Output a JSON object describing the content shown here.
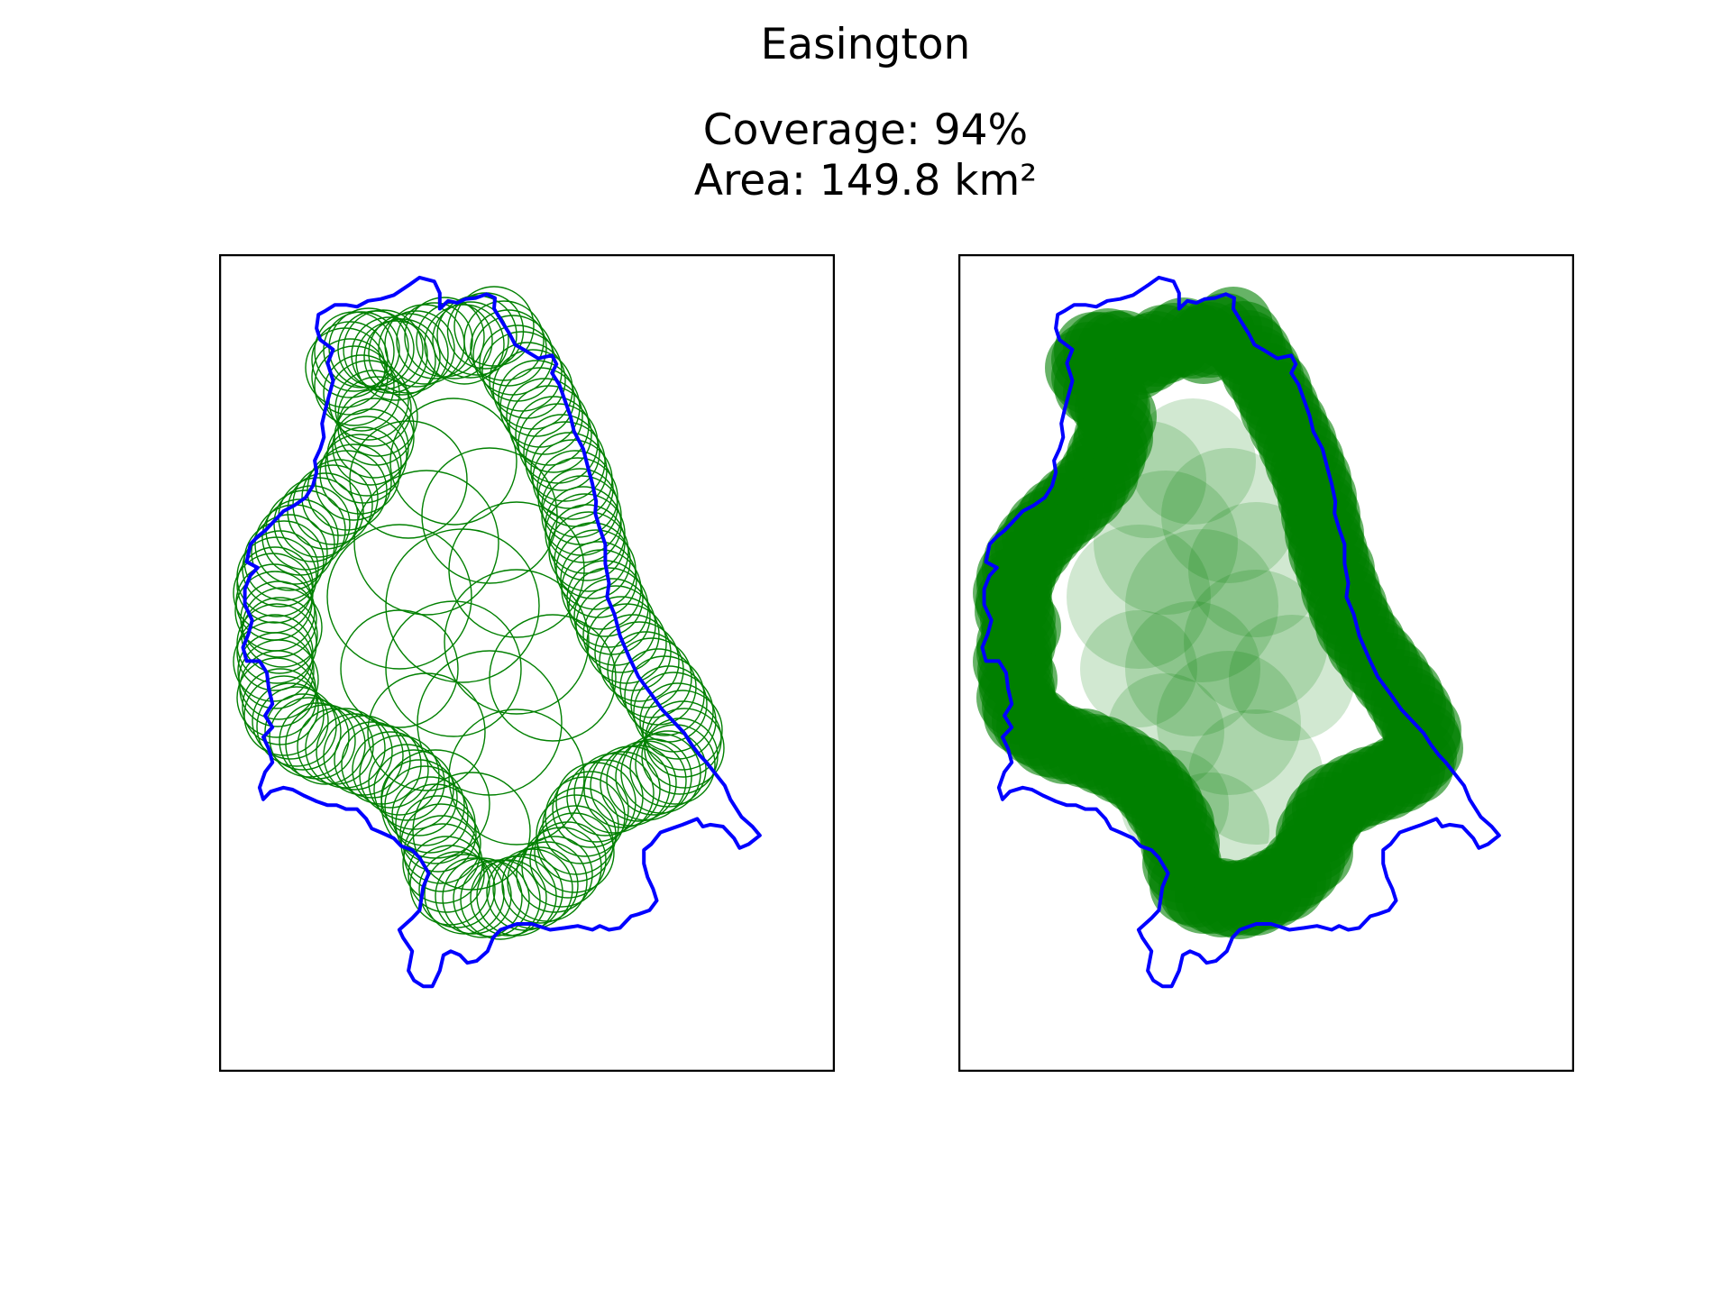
{
  "figure": {
    "title": "Easington",
    "coverage_text": "Coverage: 94%",
    "area_text": "Area: 149.8 km²",
    "coverage_percent": 94,
    "area_km2": 149.8
  },
  "colors": {
    "boundary": "#0000ff",
    "coverage": "#008000",
    "frame": "#000000",
    "background": "#ffffff"
  },
  "panels": [
    {
      "style": "outline",
      "description_name": "circle-outlines-panel"
    },
    {
      "style": "filled",
      "description_name": "filled-circles-panel"
    }
  ]
}
